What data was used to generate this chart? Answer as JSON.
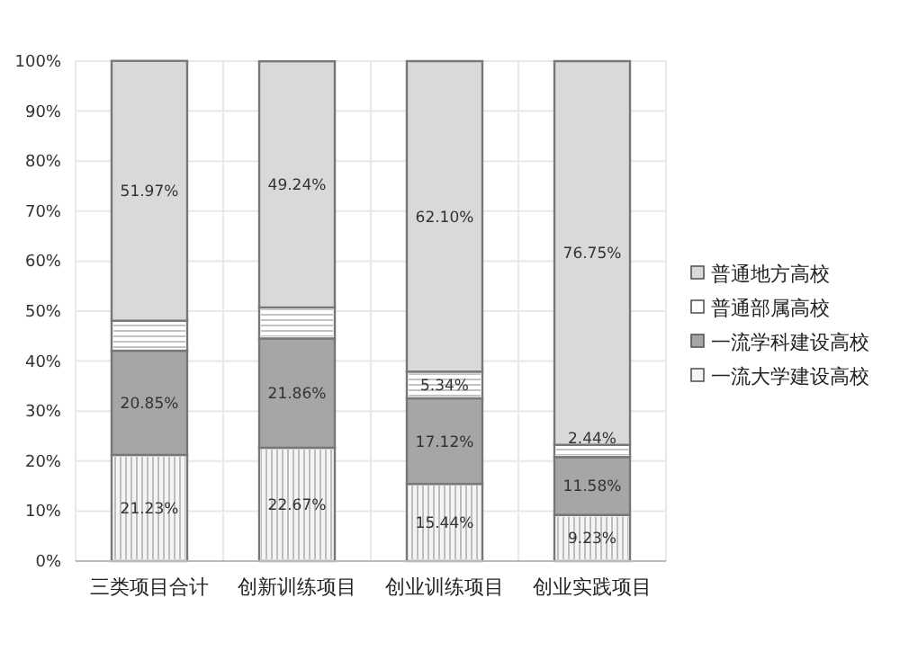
{
  "chart_data": {
    "type": "bar",
    "stacked": true,
    "categories": [
      "三类项目合计",
      "创新训练项目",
      "创业训练项目",
      "创业实践项目"
    ],
    "series": [
      {
        "name": "一流大学建设高校",
        "color": "#f4f4f4",
        "values": [
          21.23,
          22.67,
          15.44,
          9.23
        ],
        "value_labels": [
          "21.23%",
          "22.67%",
          "15.44%",
          "9.23%"
        ]
      },
      {
        "name": "一流学科建设高校",
        "color": "#a6a6a6",
        "values": [
          20.85,
          21.86,
          17.12,
          11.58
        ],
        "value_labels": [
          "20.85%",
          "21.86%",
          "17.12%",
          "11.58%"
        ]
      },
      {
        "name": "普通部属高校",
        "color": "#ffffff",
        "values": [
          6,
          6.2,
          5.34,
          2.44
        ],
        "value_labels": [
          null,
          null,
          "5.34%",
          "2.44%"
        ]
      },
      {
        "name": "普通地方高校",
        "color": "#d9d9d9",
        "values": [
          51.97,
          49.24,
          62.1,
          76.75
        ],
        "value_labels": [
          "51.97%",
          "49.24%",
          "62.10%",
          "76.75%"
        ]
      }
    ],
    "ylim": [
      0,
      100
    ],
    "yticks": [
      {
        "value": 0,
        "label": "0%"
      },
      {
        "value": 10,
        "label": "10%"
      },
      {
        "value": 20,
        "label": "20%"
      },
      {
        "value": 30,
        "label": "30%"
      },
      {
        "value": 40,
        "label": "40%"
      },
      {
        "value": 50,
        "label": "50%"
      },
      {
        "value": 60,
        "label": "60%"
      },
      {
        "value": 70,
        "label": "70%"
      },
      {
        "value": 80,
        "label": "80%"
      },
      {
        "value": 90,
        "label": "90%"
      },
      {
        "value": 100,
        "label": "100%"
      }
    ],
    "grid": true,
    "legend": "right"
  }
}
